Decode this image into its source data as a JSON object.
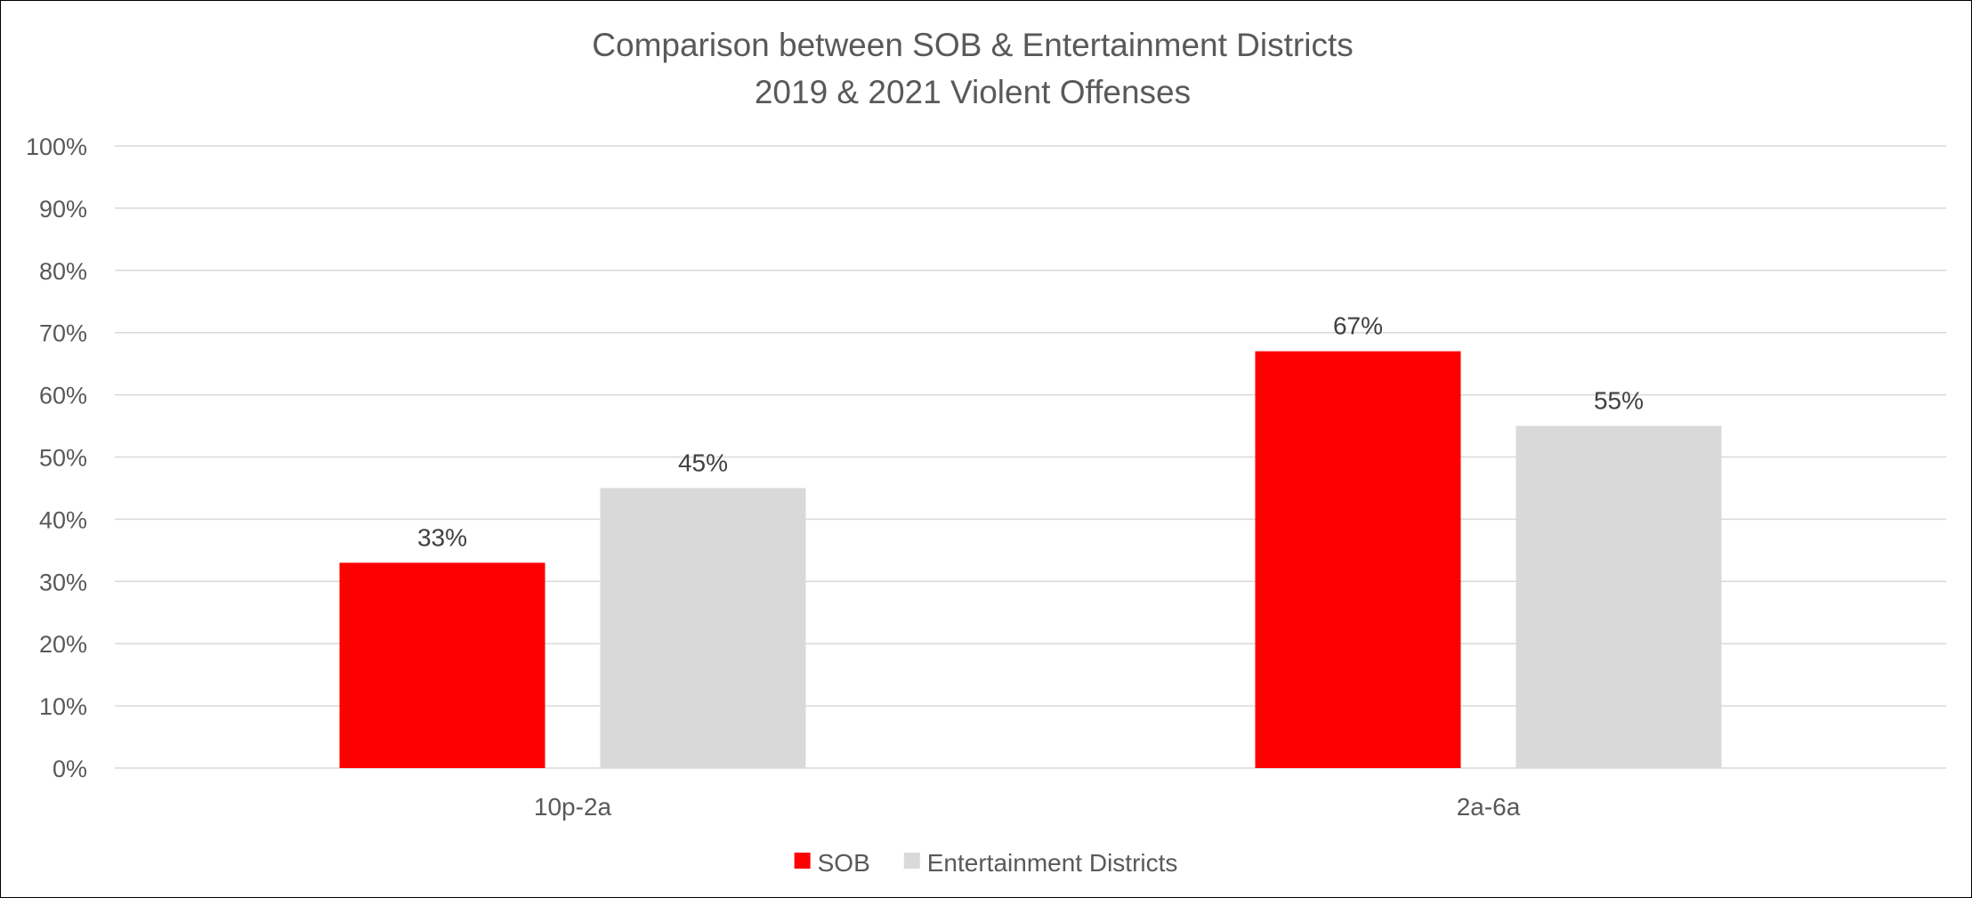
{
  "chart_data": {
    "type": "bar",
    "title": "Comparison between SOB & Entertainment Districts",
    "subtitle": "2019 & 2021 Violent Offenses",
    "xlabel": "",
    "ylabel": "",
    "categories": [
      "10p-2a",
      "2a-6a"
    ],
    "series": [
      {
        "name": "SOB",
        "values": [
          0.33,
          0.67
        ],
        "labels": [
          "33%",
          "67%"
        ],
        "color": "#ff0000"
      },
      {
        "name": "Entertainment Districts",
        "values": [
          0.45,
          0.55
        ],
        "labels": [
          "45%",
          "55%"
        ],
        "color": "#d9d9d9"
      }
    ],
    "ylim": [
      0,
      1
    ],
    "yticks": [
      0,
      0.1,
      0.2,
      0.3,
      0.4,
      0.5,
      0.6,
      0.7,
      0.8,
      0.9,
      1.0
    ],
    "ytick_labels": [
      "0%",
      "10%",
      "20%",
      "30%",
      "40%",
      "50%",
      "60%",
      "70%",
      "80%",
      "90%",
      "100%"
    ],
    "grid": true,
    "legend_position": "bottom",
    "gridline_color": "#d9d9d9",
    "text_color": "#595959"
  }
}
